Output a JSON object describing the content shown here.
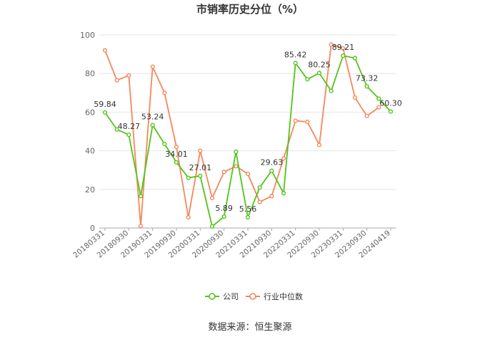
{
  "chart_data": {
    "type": "line",
    "title": "市销率历史分位（%）",
    "xlabel": "",
    "ylabel": "",
    "ylim": [
      0,
      100
    ],
    "yticks": [
      0,
      20,
      40,
      60,
      80,
      100
    ],
    "grid": "horizontal",
    "legend_position": "bottom",
    "x": [
      "20180331",
      "20180630",
      "20180930",
      "20181231",
      "20190331",
      "20190630",
      "20190930",
      "20191231",
      "20200331",
      "20200630",
      "20200930",
      "20201231",
      "20210331",
      "20210630",
      "20210930",
      "20211231",
      "20220331",
      "20220630",
      "20220930",
      "20221231",
      "20230331",
      "20230630",
      "20230930",
      "20231231",
      "20240419"
    ],
    "x_tick_labels": [
      "20180331",
      "20180930",
      "20190331",
      "20190930",
      "20200331",
      "20200930",
      "20210331",
      "20210930",
      "20220331",
      "20220930",
      "20230331",
      "20230930",
      "20240419"
    ],
    "series": [
      {
        "name": "公司",
        "color": "#52c41a",
        "values": [
          59.84,
          51.0,
          48.27,
          16.5,
          53.24,
          43.5,
          34.01,
          26.0,
          27.01,
          0.8,
          5.89,
          39.5,
          5.56,
          21.0,
          29.63,
          18.0,
          85.42,
          77.0,
          80.25,
          71.0,
          89.21,
          88.0,
          73.32,
          67.0,
          60.3
        ],
        "labels": [
          "59.84",
          "",
          "48.27",
          "",
          "53.24",
          "",
          "34.01",
          "",
          "27.01",
          "",
          "5.89",
          "",
          "5.56",
          "",
          "29.63",
          "",
          "85.42",
          "",
          "80.25",
          "",
          "89.21",
          "",
          "73.32",
          "",
          "60.30"
        ]
      },
      {
        "name": "行业中位数",
        "color": "#f5875c",
        "values": [
          92.0,
          76.5,
          79.0,
          1.0,
          83.5,
          70.0,
          42.0,
          5.5,
          40.0,
          15.5,
          29.0,
          32.0,
          28.0,
          13.5,
          16.5,
          36.0,
          55.5,
          55.0,
          43.0,
          95.0,
          93.0,
          67.5,
          58.0,
          62.5,
          null
        ]
      }
    ]
  },
  "source_note": "数据来源：恒生聚源"
}
